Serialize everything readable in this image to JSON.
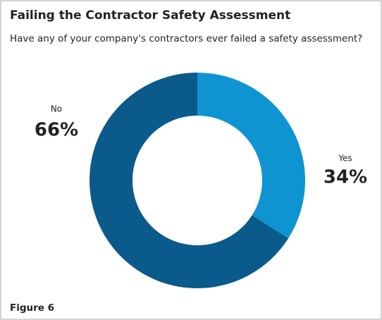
{
  "chart_data": {
    "type": "donut",
    "title": "Failing the Contractor Safety Assessment",
    "subtitle": "Have any of your company's contractors ever failed a safety assessment?",
    "categories": [
      "No",
      "Yes"
    ],
    "values": [
      66,
      34
    ],
    "value_labels": [
      "66%",
      "34%"
    ],
    "colors": [
      "#0a5a8c",
      "#0f94d2"
    ],
    "caption": "Figure 6"
  }
}
